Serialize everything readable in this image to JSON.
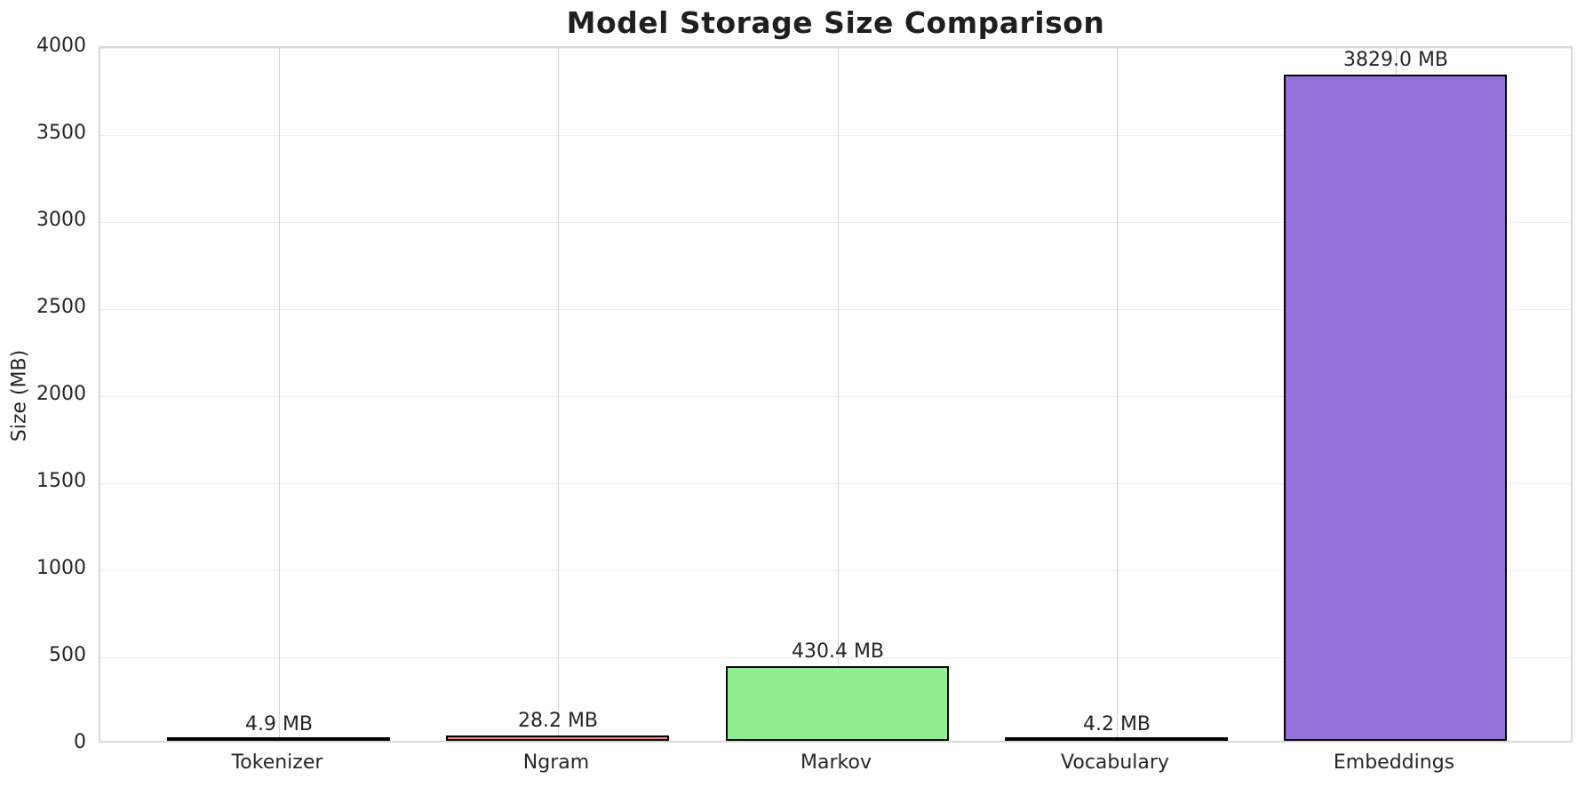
{
  "title": "Model Storage Size Comparison",
  "chart_data": {
    "type": "bar",
    "title": "Model Storage Size Comparison",
    "xlabel": "",
    "ylabel": "Size (MB)",
    "categories": [
      "Tokenizer",
      "Ngram",
      "Markov",
      "Vocabulary",
      "Embeddings"
    ],
    "values": [
      4.9,
      28.2,
      430.4,
      4.2,
      3829.0
    ],
    "value_labels": [
      "4.9 MB",
      "28.2 MB",
      "430.4 MB",
      "4.2 MB",
      "3829.0 MB"
    ],
    "unit": "MB",
    "ylim": [
      0,
      4000
    ],
    "yticks": [
      0,
      500,
      1000,
      1500,
      2000,
      2500,
      3000,
      3500,
      4000
    ],
    "ytick_labels": [
      "0",
      "500",
      "1000",
      "1500",
      "2000",
      "2500",
      "3000",
      "3500",
      "4000"
    ],
    "grid": true,
    "legend": "none",
    "colors": {
      "bar_fills": [
        "#87CEEB",
        "#F08080",
        "#90EE90",
        "#FFD700",
        "#9370DB"
      ],
      "bar_edge": "#000000",
      "grid_vertical": "#d4d4d4",
      "grid_horizontal": "#eeeeee",
      "axes_border": "#d9d9d9",
      "text": "#262626"
    }
  }
}
